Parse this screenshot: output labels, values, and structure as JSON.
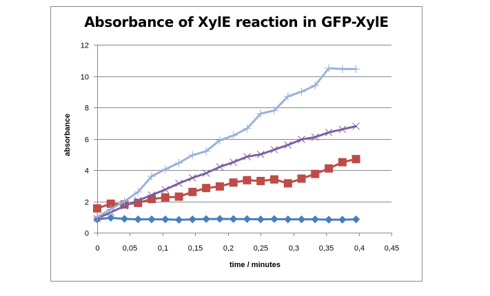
{
  "chart_data": {
    "type": "line",
    "title": "Absorbance of XylE reaction in GFP-XylE",
    "xlabel": "time / minutes",
    "ylabel": "absorbance",
    "xlim": [
      0,
      0.45
    ],
    "ylim": [
      0,
      12
    ],
    "x_ticks": [
      "0",
      "0,05",
      "0,1",
      "0,15",
      "0,2",
      "0,25",
      "0,3",
      "0,35",
      "0,4",
      "0,45"
    ],
    "x_tick_values": [
      0,
      0.05,
      0.1,
      0.15,
      0.2,
      0.25,
      0.3,
      0.35,
      0.4,
      0.45
    ],
    "y_ticks": [
      "0",
      "2",
      "4",
      "6",
      "8",
      "10",
      "12"
    ],
    "y_tick_values": [
      0,
      2,
      4,
      6,
      8,
      10,
      12
    ],
    "grid": "horizontal",
    "legend": "none",
    "x": [
      0,
      0.0208,
      0.0417,
      0.0625,
      0.0833,
      0.1042,
      0.125,
      0.1458,
      0.1667,
      0.1875,
      0.2083,
      0.2292,
      0.25,
      0.2708,
      0.2917,
      0.3125,
      0.3333,
      0.3542,
      0.375,
      0.3958
    ],
    "series": [
      {
        "name": "series-1-diamond",
        "marker": "diamond",
        "color": "#4a7ebb",
        "values": [
          0.85,
          0.95,
          0.88,
          0.85,
          0.85,
          0.85,
          0.82,
          0.85,
          0.87,
          0.88,
          0.87,
          0.87,
          0.85,
          0.87,
          0.85,
          0.85,
          0.85,
          0.83,
          0.83,
          0.85
        ]
      },
      {
        "name": "series-2-square",
        "marker": "square",
        "color": "#be4b48",
        "values": [
          1.55,
          1.85,
          1.8,
          1.9,
          2.15,
          2.25,
          2.3,
          2.6,
          2.85,
          2.95,
          3.2,
          3.35,
          3.3,
          3.4,
          3.15,
          3.45,
          3.75,
          4.1,
          4.5,
          4.7
        ]
      },
      {
        "name": "series-3-cross",
        "marker": "x",
        "color": "#7d5fa0",
        "values": [
          0.9,
          1.3,
          1.7,
          2.05,
          2.4,
          2.75,
          3.15,
          3.5,
          3.8,
          4.2,
          4.5,
          4.85,
          5.0,
          5.3,
          5.6,
          5.95,
          6.1,
          6.4,
          6.6,
          6.8
        ]
      },
      {
        "name": "series-4-plus",
        "marker": "plus",
        "color": "#98b2d7",
        "values": [
          1.0,
          1.5,
          2.0,
          2.6,
          3.6,
          4.05,
          4.45,
          4.95,
          5.2,
          5.9,
          6.2,
          6.65,
          7.6,
          7.8,
          8.7,
          9.0,
          9.4,
          10.5,
          10.45,
          10.45
        ]
      }
    ]
  }
}
